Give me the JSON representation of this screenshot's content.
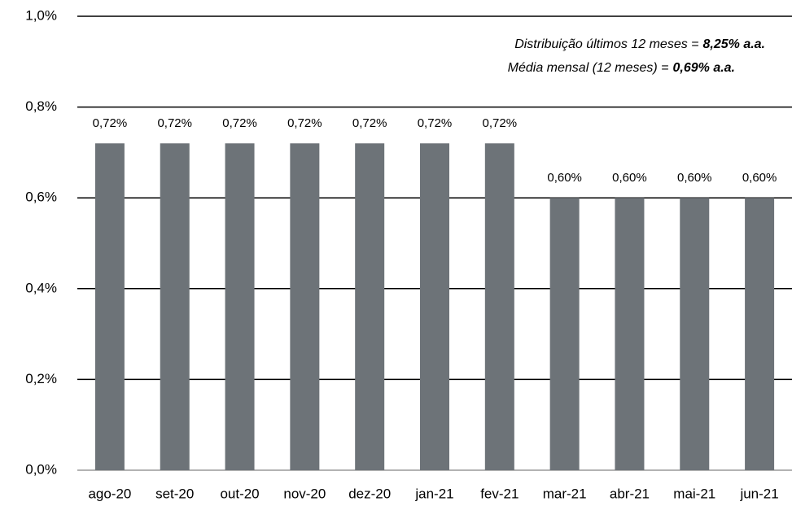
{
  "chart_data": {
    "type": "bar",
    "annotations": [
      {
        "text": "Distribuição últimos 12 meses =",
        "emphasis": "8,25% a.a."
      },
      {
        "text": "Média mensal (12 meses) =",
        "emphasis": "0,69% a.a."
      }
    ],
    "categories": [
      "ago-20",
      "set-20",
      "out-20",
      "nov-20",
      "dez-20",
      "jan-21",
      "fev-21",
      "mar-21",
      "abr-21",
      "mai-21",
      "jun-21"
    ],
    "values": [
      0.72,
      0.72,
      0.72,
      0.72,
      0.72,
      0.72,
      0.72,
      0.6,
      0.6,
      0.6,
      0.6
    ],
    "value_labels": [
      "0,72%",
      "0,72%",
      "0,72%",
      "0,72%",
      "0,72%",
      "0,72%",
      "0,72%",
      "0,60%",
      "0,60%",
      "0,60%",
      "0,60%"
    ],
    "color": "#6d7378",
    "ylim": [
      0,
      1.0
    ],
    "yticks": [
      {
        "value": 0,
        "label": "0,0%"
      },
      {
        "value": 0.2,
        "label": "0,2%"
      },
      {
        "value": 0.4,
        "label": "0,4%"
      },
      {
        "value": 0.6,
        "label": "0,6%"
      },
      {
        "value": 0.8,
        "label": "0,8%"
      },
      {
        "value": 1.0,
        "label": "1,0%"
      }
    ],
    "grid": true
  }
}
